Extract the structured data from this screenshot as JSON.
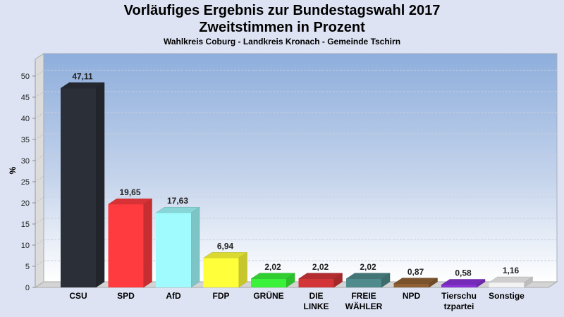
{
  "header": {
    "title_line1": "Vorläufiges Ergebnis zur Bundestagswahl 2017",
    "title_line2": "Zweitstimmen in Prozent",
    "subtitle": "Wahlkreis Coburg - Landkreis Kronach - Gemeinde Tschirn"
  },
  "chart_data": {
    "type": "bar",
    "title": "Vorläufiges Ergebnis zur Bundestagswahl 2017 - Zweitstimmen in Prozent",
    "subtitle": "Wahlkreis Coburg - Landkreis Kronach - Gemeinde Tschirn",
    "xlabel": "",
    "ylabel": "%",
    "ylim": [
      0,
      50
    ],
    "yticks": [
      0,
      5,
      10,
      15,
      20,
      25,
      30,
      35,
      40,
      45,
      50
    ],
    "grid": true,
    "three_d": true,
    "categories": [
      "CSU",
      "SPD",
      "AfD",
      "FDP",
      "GRÜNE",
      "DIE LINKE",
      "FREIE WÄHLER",
      "NPD",
      "Tierschutzpartei",
      "Sonstige"
    ],
    "category_label_lines": [
      [
        "CSU"
      ],
      [
        "SPD"
      ],
      [
        "AfD"
      ],
      [
        "FDP"
      ],
      [
        "GRÜNE"
      ],
      [
        "DIE",
        "LINKE"
      ],
      [
        "FREIE",
        "WÄHLER"
      ],
      [
        "NPD"
      ],
      [
        "Tierschu",
        "tzpartei"
      ],
      [
        "Sonstige"
      ]
    ],
    "values": [
      47.11,
      19.65,
      17.63,
      6.94,
      2.02,
      2.02,
      2.02,
      0.87,
      0.58,
      1.16
    ],
    "value_labels": [
      "47,11",
      "19,65",
      "17,63",
      "6,94",
      "2,02",
      "2,02",
      "2,02",
      "0,87",
      "0,58",
      "1,16"
    ],
    "colors": [
      "#2b2f38",
      "#ff3b3f",
      "#9ffbfd",
      "#ffff3a",
      "#3af23a",
      "#d23437",
      "#4f8a8c",
      "#8f6033",
      "#8a33d8",
      "#f2f2f2"
    ]
  }
}
